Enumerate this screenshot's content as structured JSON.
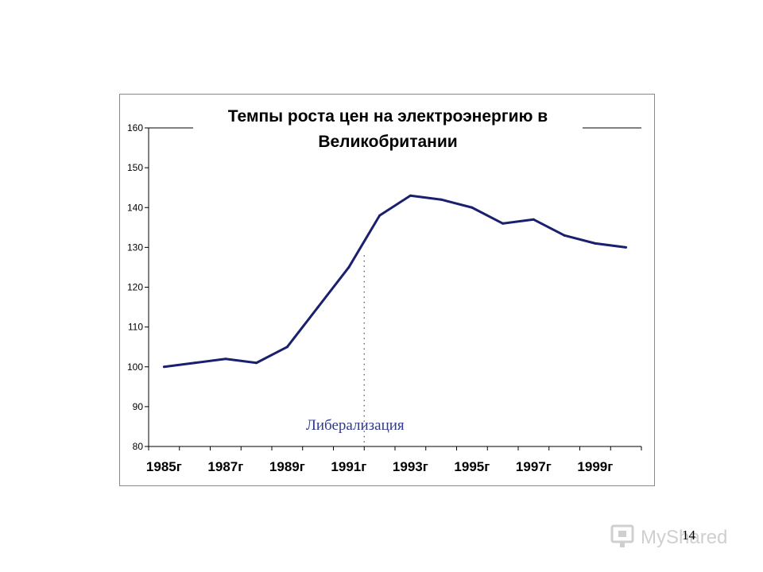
{
  "chart_data": {
    "type": "line",
    "title": "Темпы роста цен на электроэнергию в Великобритании",
    "title_lines": [
      "Темпы роста цен на электроэнергию в",
      "Великобритании"
    ],
    "x": [
      "1985г",
      "1986г",
      "1987г",
      "1988г",
      "1989г",
      "1990г",
      "1991г",
      "1992г",
      "1993г",
      "1994г",
      "1995г",
      "1996г",
      "1997г",
      "1998г",
      "1999г",
      "2000г"
    ],
    "x_tick_labels": [
      "1985г",
      "1987г",
      "1989г",
      "1991г",
      "1993г",
      "1995г",
      "1997г",
      "1999г"
    ],
    "series": [
      {
        "values": [
          100,
          101,
          102,
          101,
          105,
          115,
          125,
          138,
          143,
          142,
          140,
          136,
          137,
          133,
          131,
          130
        ]
      }
    ],
    "ylim": [
      80,
      160
    ],
    "y_ticks": [
      80,
      90,
      100,
      110,
      120,
      130,
      140,
      150,
      160
    ],
    "xlabel": "",
    "ylabel": "",
    "grid": false,
    "line_color": "#1a1f6e",
    "annotation": {
      "text": "Либерализация",
      "marker_x": "1991г",
      "color": "#2f3b8f"
    }
  },
  "page": {
    "number": "14",
    "watermark": "MyShared"
  }
}
